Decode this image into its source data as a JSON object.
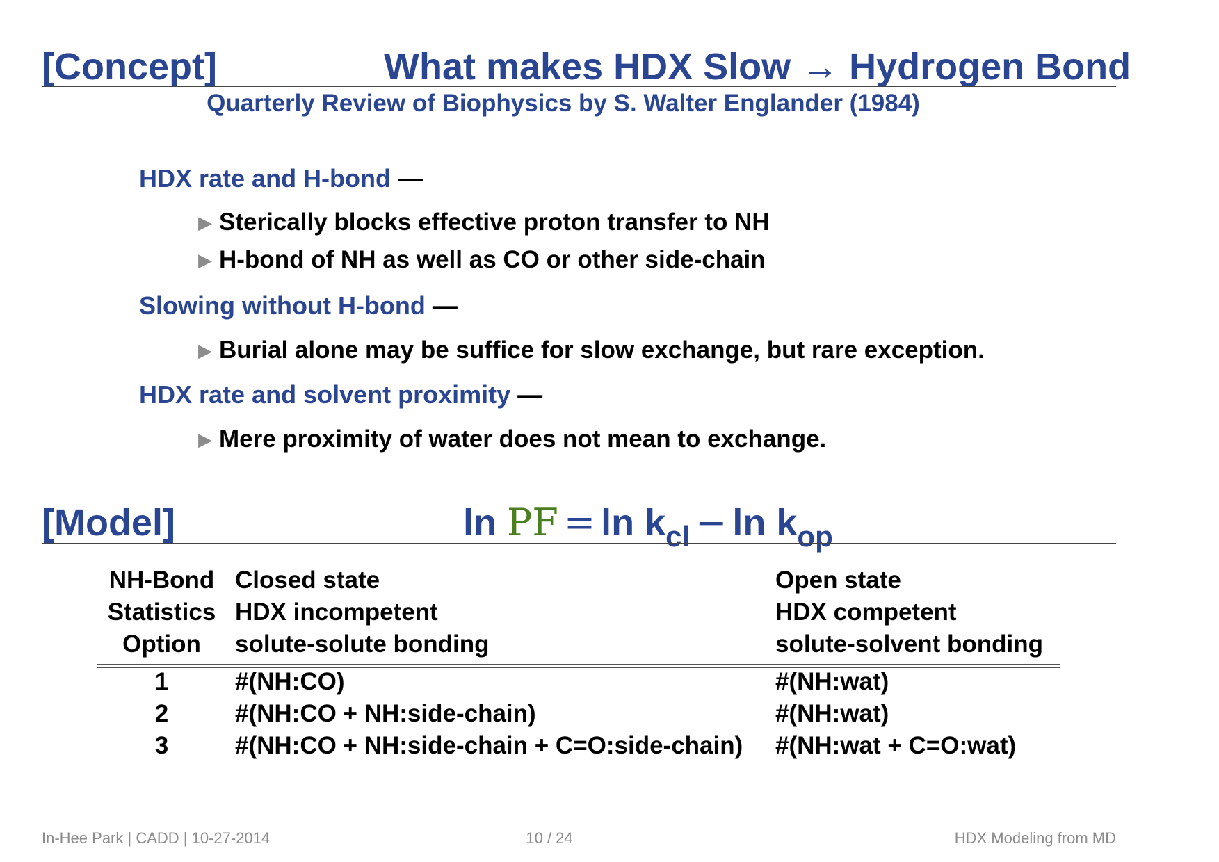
{
  "header": {
    "tag": "[Concept]",
    "title": "What makes HDX Slow → Hydrogen Bond",
    "subtitle": "Quarterly Review of Biophysics by S. Walter Englander (1984)"
  },
  "sections": [
    {
      "heading": "HDX rate and H-bond",
      "dash": "—",
      "bullets": [
        "Sterically blocks effective proton transfer to NH",
        "H-bond of NH as well as CO or other side-chain"
      ]
    },
    {
      "heading": "Slowing without H-bond",
      "dash": "—",
      "bullets": [
        "Burial alone may be suffice for slow exchange, but rare exception."
      ]
    },
    {
      "heading": "HDX rate and solvent proximity",
      "dash": "—",
      "bullets": [
        "Mere proximity of water does not mean to exchange."
      ]
    }
  ],
  "bullet_marker": "▶",
  "model": {
    "tag": "[Model]",
    "eq": {
      "ln1": "ln",
      "pf": "PF",
      "equals": "=",
      "ln2": "ln k",
      "sub_cl": "cl",
      "minus": "−",
      "ln3": "ln k",
      "sub_op": "op"
    }
  },
  "table": {
    "header": {
      "col1": [
        "NH-Bond",
        "Statistics",
        "Option"
      ],
      "col2": [
        "Closed state",
        "HDX incompetent",
        "solute-solute bonding"
      ],
      "col3": [
        "Open state",
        "HDX competent",
        "solute-solvent bonding"
      ]
    },
    "rows": [
      {
        "option": "1",
        "closed": "#(NH:CO)",
        "open": "#(NH:wat)"
      },
      {
        "option": "2",
        "closed": "#(NH:CO + NH:side-chain)",
        "open": "#(NH:wat)"
      },
      {
        "option": "3",
        "closed": "#(NH:CO + NH:side-chain + C=O:side-chain)",
        "open": "#(NH:wat + C=O:wat)"
      }
    ]
  },
  "footer": {
    "left": "In-Hee Park | CADD | 10-27-2014",
    "center": "10 / 24",
    "right": "HDX Modeling from MD"
  },
  "colors": {
    "title_blue": "#2a4591",
    "pf_green": "#4a7f1f",
    "footer_gray": "#8c8c8c"
  }
}
